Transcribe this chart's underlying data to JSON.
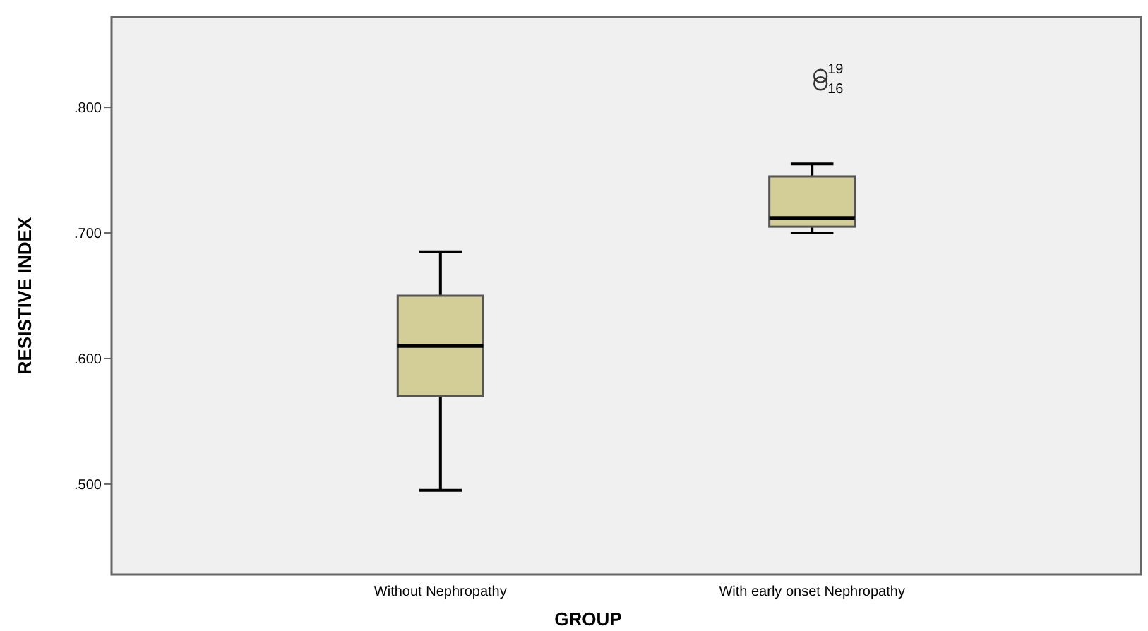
{
  "chart_data": {
    "type": "box",
    "xlabel": "GROUP",
    "ylabel": "RESISTIVE INDEX",
    "categories": [
      "Without Nephropathy",
      "With early onset Nephropathy"
    ],
    "color": "#d3ce98",
    "boxes": [
      {
        "low": 0.495,
        "q1": 0.57,
        "median": 0.61,
        "q3": 0.65,
        "high": 0.685
      },
      {
        "low": 0.7,
        "q1": 0.705,
        "median": 0.712,
        "q3": 0.745,
        "high": 0.755,
        "outliers": [
          0.825,
          0.819
        ]
      }
    ],
    "annotations": [
      "19",
      "16"
    ],
    "ylim": [
      0.428,
      0.872
    ],
    "yticks": [
      {
        "value": 0.5,
        "label": ".500"
      },
      {
        "value": 0.6,
        "label": ".600"
      },
      {
        "value": 0.7,
        "label": ".700"
      },
      {
        "value": 0.8,
        "label": ".800"
      }
    ],
    "grid": false
  }
}
